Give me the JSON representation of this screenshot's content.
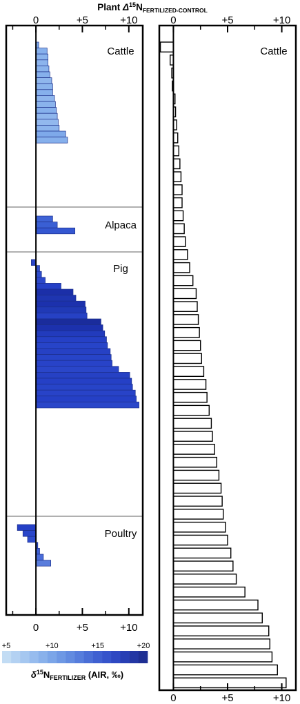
{
  "chart_data": [
    {
      "type": "bar",
      "orientation": "horizontal",
      "title": "Plant Δ15NFERTILIZED-CONTROL",
      "title_parts": {
        "prefix": "Plant ",
        "delta": "Δ",
        "superscript": "15",
        "base": "N",
        "subscript": "FERTILIZED-CONTROL"
      },
      "xlim": [
        -3.2,
        11.5
      ],
      "xticks": [
        0,
        5,
        10
      ],
      "xtick_labels": [
        "0",
        "+5",
        "+10"
      ],
      "groups": [
        {
          "label": "Cattle",
          "values": [
            0.3,
            1.2,
            1.3,
            1.3,
            1.4,
            1.5,
            1.7,
            1.8,
            1.8,
            2.0,
            2.1,
            2.2,
            2.3,
            2.4,
            2.5,
            3.2,
            3.4
          ],
          "colors": [
            "#7ea9ea",
            "#86b0ec",
            "#8ab3ec",
            "#8cb4ed",
            "#8ab3ec",
            "#86b0ec",
            "#8fb6ed",
            "#8ab3ec",
            "#86b0ec",
            "#8fb6ed",
            "#8ab3ec",
            "#86b0ec",
            "#8fb6ed",
            "#92b8ee",
            "#8cb4ed",
            "#7ea9ea",
            "#86b0ec"
          ]
        },
        {
          "label": "Alpaca",
          "values": [
            1.8,
            2.3,
            4.2
          ],
          "colors": [
            "#3e63d6",
            "#3a5fd4",
            "#3457d1"
          ]
        },
        {
          "label": "Pig",
          "values": [
            -0.5,
            0.4,
            0.6,
            1.0,
            2.7,
            4.0,
            4.3,
            5.3,
            5.4,
            5.5,
            7.0,
            7.2,
            7.4,
            7.6,
            7.7,
            8.0,
            8.1,
            8.2,
            8.9,
            10.1,
            10.3,
            10.4,
            10.7,
            10.8,
            11.1
          ],
          "colors": [
            "#2a46c9",
            "#3050cc",
            "#2e4ccb",
            "#2c48ca",
            "#2540c6",
            "#1b2fa8",
            "#1e35b0",
            "#1c31ad",
            "#2039b6",
            "#2641c4",
            "#1a2c9c",
            "#1c31ad",
            "#223bbd",
            "#2540c6",
            "#2744c8",
            "#2641c4",
            "#2744c8",
            "#2843c8",
            "#2a46c9",
            "#2641c4",
            "#2540c6",
            "#2744c8",
            "#2843c8",
            "#2540c6",
            "#2a46c9"
          ]
        },
        {
          "label": "Poultry",
          "values": [
            -2.0,
            -1.4,
            -0.9,
            0.2,
            0.4,
            0.8,
            1.6
          ],
          "colors": [
            "#2540c6",
            "#2a46c9",
            "#2e4ccb",
            "#3454d0",
            "#3c5fd5",
            "#4a6cd9",
            "#5a7ddc"
          ]
        }
      ],
      "colorbar": {
        "label": "δ15NFERTILIZER (AIR, ‰)",
        "label_parts": {
          "delta": "δ",
          "superscript": "15",
          "base": "N",
          "subscript": "FERTILIZER",
          "suffix": " (AIR, ‰)"
        },
        "range": [
          5,
          20
        ],
        "ticks": [
          "+5",
          "+10",
          "+15",
          "+20"
        ],
        "colors": [
          "#c2dcf4",
          "#b3d1f2",
          "#a5c7f0",
          "#97bcee",
          "#89b1eb",
          "#7ba5e8",
          "#6e98e4",
          "#628be0",
          "#567ddc",
          "#4a6ed6",
          "#3f60d1",
          "#3654cb",
          "#2e48c2",
          "#283fb4",
          "#2337a4",
          "#1e2f93"
        ]
      }
    },
    {
      "type": "bar",
      "orientation": "horizontal",
      "fill": "#ffffff",
      "stroke": "#000000",
      "xlim": [
        -1.3,
        11.3
      ],
      "xticks": [
        0,
        5,
        10
      ],
      "xtick_labels": [
        "0",
        "+5",
        "+10"
      ],
      "label": "Cattle",
      "values": [
        -1.2,
        -0.3,
        -0.15,
        -0.1,
        0.15,
        0.2,
        0.3,
        0.4,
        0.5,
        0.6,
        0.7,
        0.8,
        0.8,
        0.9,
        1.0,
        1.1,
        1.3,
        1.5,
        1.8,
        2.1,
        2.2,
        2.3,
        2.4,
        2.5,
        2.6,
        2.8,
        3.0,
        3.1,
        3.3,
        3.5,
        3.6,
        3.8,
        4.0,
        4.2,
        4.4,
        4.5,
        4.6,
        4.8,
        5.0,
        5.3,
        5.5,
        5.8,
        6.6,
        7.8,
        8.2,
        8.8,
        8.9,
        9.1,
        9.6,
        10.4
      ]
    }
  ]
}
